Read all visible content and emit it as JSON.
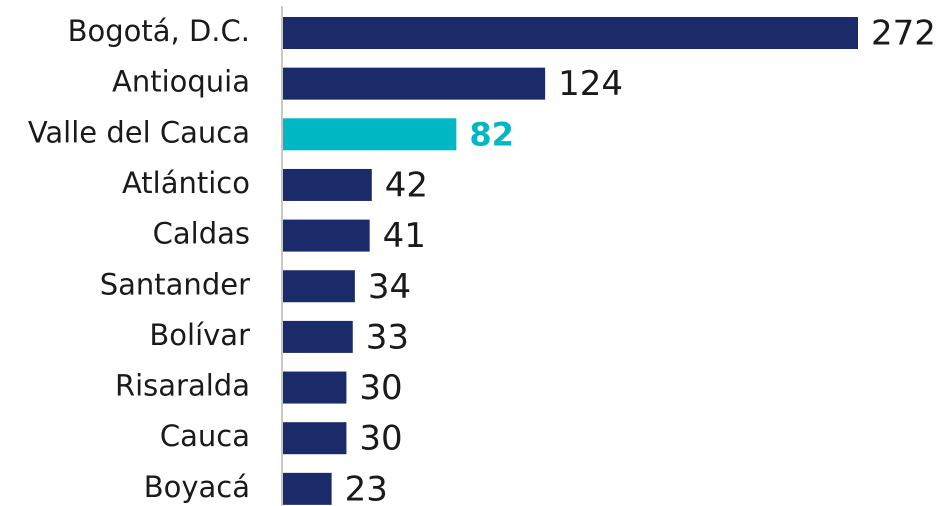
{
  "chart_data": {
    "type": "bar",
    "orientation": "horizontal",
    "categories": [
      "Bogotá, D.C.",
      "Antioquia",
      "Valle del Cauca",
      "Atlántico",
      "Caldas",
      "Santander",
      "Bolívar",
      "Risaralda",
      "Cauca",
      "Boyacá"
    ],
    "values": [
      272,
      124,
      82,
      42,
      41,
      34,
      33,
      30,
      30,
      23
    ],
    "color": "#1b2a68",
    "colors": [
      "#1b2a68",
      "#1b2a68",
      "#00b7c4",
      "#1b2a68",
      "#1b2a68",
      "#1b2a68",
      "#1b2a68",
      "#1b2a68",
      "#1b2a68",
      "#1b2a68"
    ]
  }
}
